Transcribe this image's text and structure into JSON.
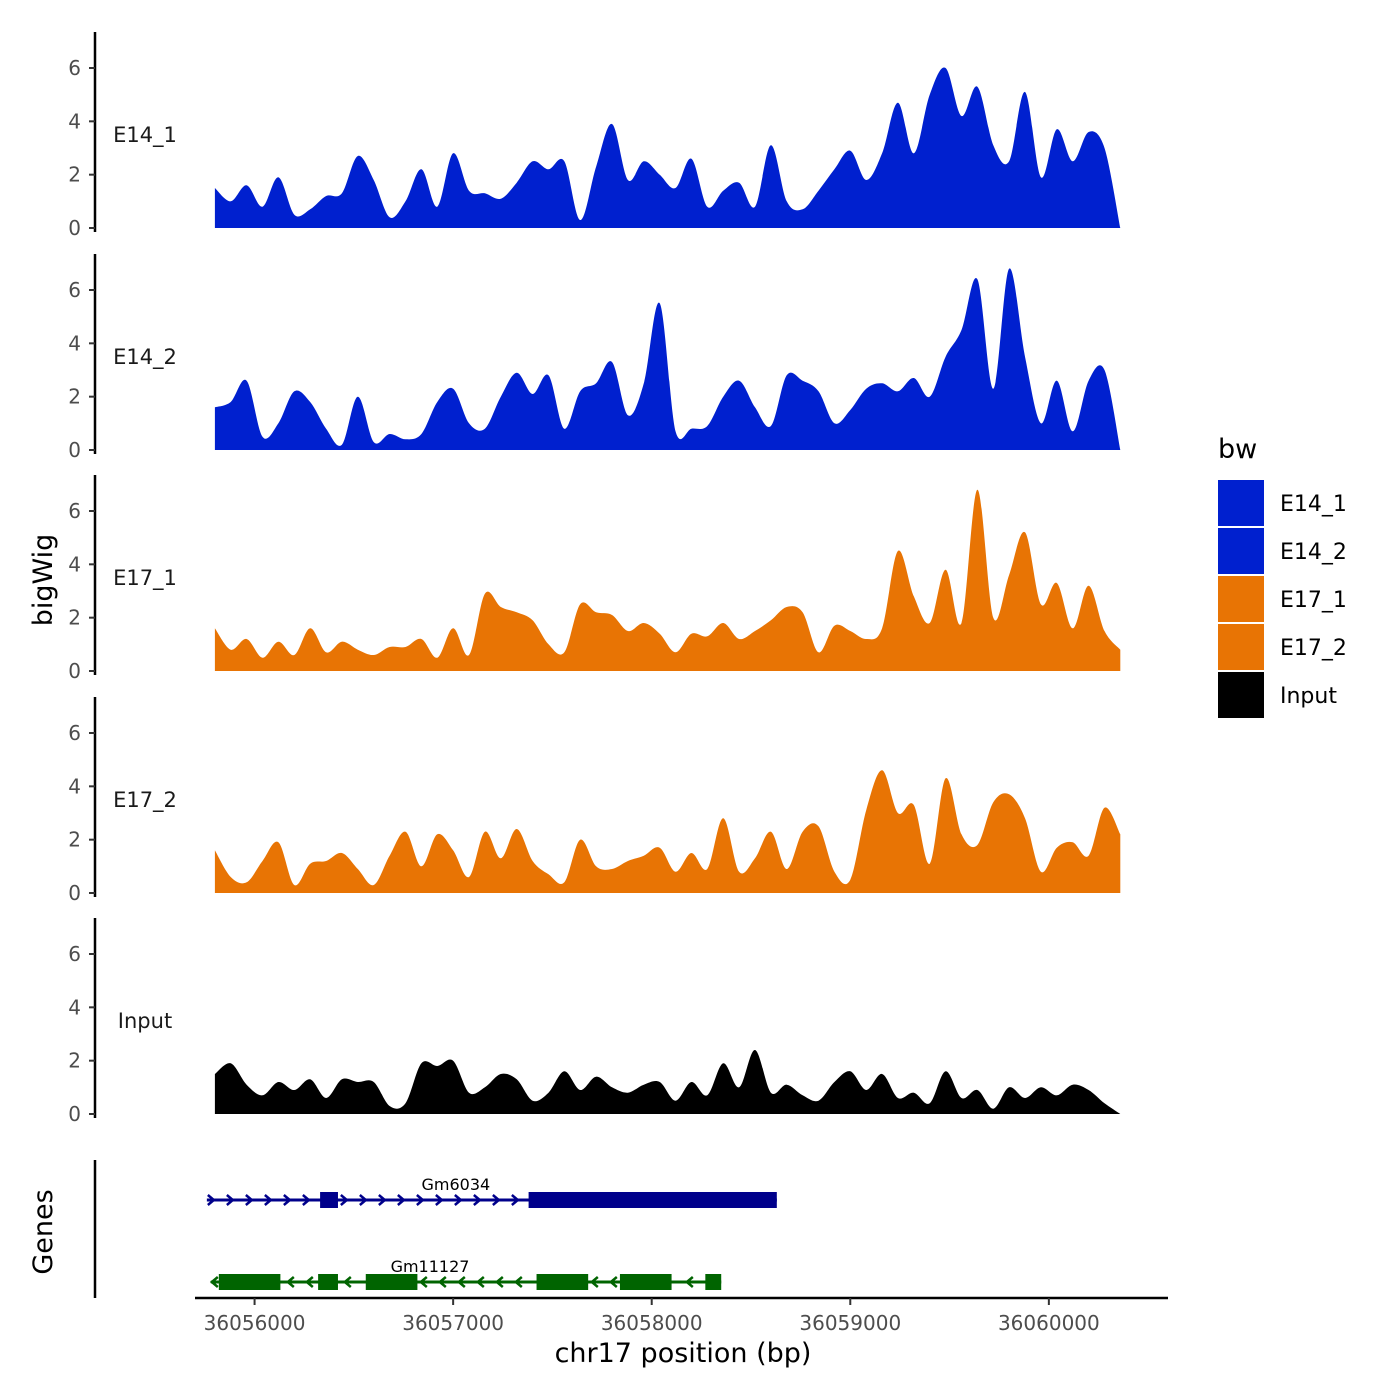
{
  "chart_data": {
    "type": "area",
    "ylabel": "bigWig",
    "xlabel": "chr17 position (bp)",
    "ylim": [
      0,
      7.2
    ],
    "y_ticks": [
      0,
      2,
      4,
      6
    ],
    "x_range": [
      36055700,
      36060600
    ],
    "x_ticks": [
      36056000,
      36057000,
      36058000,
      36059000,
      36060000
    ],
    "x_tick_labels": [
      "36056000",
      "36057000",
      "36058000",
      "36059000",
      "36060000"
    ],
    "gene_axis_label": "Genes",
    "legend": {
      "title": "bw",
      "entries": [
        {
          "label": "E14_1",
          "color": "#0020cf"
        },
        {
          "label": "E14_2",
          "color": "#0020cf"
        },
        {
          "label": "E17_1",
          "color": "#e87404"
        },
        {
          "label": "E17_2",
          "color": "#e87404"
        },
        {
          "label": "Input",
          "color": "#000000"
        }
      ]
    },
    "tracks": [
      {
        "name": "E14_1",
        "color": "#0020cf",
        "x": [
          36055800,
          36055880,
          36055960,
          36056040,
          36056120,
          36056200,
          36056280,
          36056360,
          36056440,
          36056520,
          36056600,
          36056680,
          36056760,
          36056840,
          36056920,
          36057000,
          36057080,
          36057160,
          36057240,
          36057320,
          36057400,
          36057480,
          36057560,
          36057640,
          36057720,
          36057800,
          36057880,
          36057960,
          36058040,
          36058120,
          36058200,
          36058280,
          36058360,
          36058440,
          36058520,
          36058600,
          36058680,
          36058760,
          36058840,
          36058920,
          36059000,
          36059080,
          36059160,
          36059240,
          36059320,
          36059400,
          36059480,
          36059560,
          36059640,
          36059720,
          36059800,
          36059880,
          36059960,
          36060040,
          36060120,
          36060200,
          36060280,
          36060360
        ],
        "values": [
          1.5,
          1.0,
          1.6,
          0.8,
          1.9,
          0.5,
          0.7,
          1.2,
          1.3,
          2.7,
          1.8,
          0.4,
          1.0,
          2.2,
          0.8,
          2.8,
          1.4,
          1.3,
          1.1,
          1.7,
          2.5,
          2.2,
          2.5,
          0.3,
          2.3,
          3.9,
          1.8,
          2.5,
          2.0,
          1.5,
          2.6,
          0.8,
          1.4,
          1.7,
          0.8,
          3.1,
          1.0,
          0.7,
          1.4,
          2.2,
          2.9,
          1.8,
          2.8,
          4.7,
          2.8,
          5.0,
          6.0,
          4.2,
          5.3,
          3.1,
          2.5,
          5.1,
          1.9,
          3.7,
          2.5,
          3.6,
          3.0,
          0.0
        ]
      },
      {
        "name": "E14_2",
        "color": "#0020cf",
        "x": [
          36055800,
          36055880,
          36055960,
          36056040,
          36056120,
          36056200,
          36056280,
          36056360,
          36056440,
          36056520,
          36056600,
          36056680,
          36056760,
          36056840,
          36056920,
          36057000,
          36057080,
          36057160,
          36057240,
          36057320,
          36057400,
          36057480,
          36057560,
          36057640,
          36057720,
          36057800,
          36057880,
          36057960,
          36058040,
          36058120,
          36058200,
          36058280,
          36058360,
          36058440,
          36058520,
          36058600,
          36058680,
          36058760,
          36058840,
          36058920,
          36059000,
          36059080,
          36059160,
          36059240,
          36059320,
          36059400,
          36059480,
          36059560,
          36059640,
          36059720,
          36059800,
          36059880,
          36059960,
          36060040,
          36060120,
          36060200,
          36060280,
          36060360
        ],
        "values": [
          1.6,
          1.8,
          2.6,
          0.5,
          1.0,
          2.2,
          1.8,
          0.8,
          0.2,
          2.0,
          0.3,
          0.6,
          0.4,
          0.6,
          1.8,
          2.3,
          1.0,
          0.8,
          2.0,
          2.9,
          2.1,
          2.8,
          0.8,
          2.2,
          2.5,
          3.3,
          1.3,
          2.5,
          5.5,
          0.7,
          0.8,
          0.9,
          2.0,
          2.6,
          1.6,
          0.9,
          2.8,
          2.6,
          2.2,
          1.0,
          1.5,
          2.3,
          2.5,
          2.2,
          2.7,
          2.0,
          3.5,
          4.5,
          6.4,
          2.3,
          6.8,
          3.5,
          1.0,
          2.6,
          0.7,
          2.6,
          3.0,
          0.0
        ]
      },
      {
        "name": "E17_1",
        "color": "#e87404",
        "x": [
          36055800,
          36055880,
          36055960,
          36056040,
          36056120,
          36056200,
          36056280,
          36056360,
          36056440,
          36056520,
          36056600,
          36056680,
          36056760,
          36056840,
          36056920,
          36057000,
          36057080,
          36057160,
          36057240,
          36057320,
          36057400,
          36057480,
          36057560,
          36057640,
          36057720,
          36057800,
          36057880,
          36057960,
          36058040,
          36058120,
          36058200,
          36058280,
          36058360,
          36058440,
          36058520,
          36058600,
          36058680,
          36058760,
          36058840,
          36058920,
          36059000,
          36059080,
          36059160,
          36059240,
          36059320,
          36059400,
          36059480,
          36059560,
          36059640,
          36059720,
          36059800,
          36059880,
          36059960,
          36060040,
          36060120,
          36060200,
          36060280,
          36060360
        ],
        "values": [
          1.6,
          0.8,
          1.2,
          0.5,
          1.1,
          0.6,
          1.6,
          0.7,
          1.1,
          0.8,
          0.6,
          0.9,
          0.9,
          1.2,
          0.5,
          1.6,
          0.6,
          2.9,
          2.4,
          2.2,
          1.9,
          1.0,
          0.7,
          2.5,
          2.2,
          2.1,
          1.5,
          1.8,
          1.4,
          0.7,
          1.4,
          1.3,
          1.8,
          1.2,
          1.5,
          1.9,
          2.4,
          2.2,
          0.7,
          1.7,
          1.5,
          1.2,
          1.6,
          4.5,
          2.8,
          1.8,
          3.8,
          1.8,
          6.8,
          2.0,
          3.6,
          5.2,
          2.5,
          3.3,
          1.6,
          3.2,
          1.5,
          0.8
        ]
      },
      {
        "name": "E17_2",
        "color": "#e87404",
        "x": [
          36055800,
          36055880,
          36055960,
          36056040,
          36056120,
          36056200,
          36056280,
          36056360,
          36056440,
          36056520,
          36056600,
          36056680,
          36056760,
          36056840,
          36056920,
          36057000,
          36057080,
          36057160,
          36057240,
          36057320,
          36057400,
          36057480,
          36057560,
          36057640,
          36057720,
          36057800,
          36057880,
          36057960,
          36058040,
          36058120,
          36058200,
          36058280,
          36058360,
          36058440,
          36058520,
          36058600,
          36058680,
          36058760,
          36058840,
          36058920,
          36059000,
          36059080,
          36059160,
          36059240,
          36059320,
          36059400,
          36059480,
          36059560,
          36059640,
          36059720,
          36059800,
          36059880,
          36059960,
          36060040,
          36060120,
          36060200,
          36060280,
          36060360
        ],
        "values": [
          1.6,
          0.6,
          0.4,
          1.2,
          1.9,
          0.3,
          1.1,
          1.2,
          1.5,
          0.9,
          0.3,
          1.4,
          2.3,
          1.0,
          2.2,
          1.6,
          0.6,
          2.3,
          1.3,
          2.4,
          1.2,
          0.7,
          0.4,
          2.0,
          1.0,
          0.9,
          1.2,
          1.4,
          1.7,
          0.8,
          1.5,
          0.9,
          2.8,
          0.8,
          1.3,
          2.3,
          0.9,
          2.3,
          2.5,
          0.8,
          0.5,
          3.1,
          4.6,
          3.0,
          3.3,
          1.1,
          4.3,
          2.2,
          1.8,
          3.4,
          3.7,
          2.8,
          0.8,
          1.7,
          1.9,
          1.4,
          3.2,
          2.2
        ]
      },
      {
        "name": "Input",
        "color": "#000000",
        "x": [
          36055800,
          36055880,
          36055960,
          36056040,
          36056120,
          36056200,
          36056280,
          36056360,
          36056440,
          36056520,
          36056600,
          36056680,
          36056760,
          36056840,
          36056920,
          36057000,
          36057080,
          36057160,
          36057240,
          36057320,
          36057400,
          36057480,
          36057560,
          36057640,
          36057720,
          36057800,
          36057880,
          36057960,
          36058040,
          36058120,
          36058200,
          36058280,
          36058360,
          36058440,
          36058520,
          36058600,
          36058680,
          36058760,
          36058840,
          36058920,
          36059000,
          36059080,
          36059160,
          36059240,
          36059320,
          36059400,
          36059480,
          36059560,
          36059640,
          36059720,
          36059800,
          36059880,
          36059960,
          36060040,
          36060120,
          36060200,
          36060280,
          36060360
        ],
        "values": [
          1.5,
          1.9,
          1.1,
          0.7,
          1.2,
          0.9,
          1.3,
          0.6,
          1.3,
          1.2,
          1.2,
          0.3,
          0.4,
          1.9,
          1.8,
          2.0,
          0.8,
          1.0,
          1.5,
          1.3,
          0.5,
          0.8,
          1.6,
          0.9,
          1.4,
          1.0,
          0.8,
          1.1,
          1.2,
          0.5,
          1.2,
          0.7,
          1.9,
          1.0,
          2.4,
          0.8,
          1.1,
          0.7,
          0.5,
          1.2,
          1.6,
          0.9,
          1.5,
          0.6,
          0.8,
          0.4,
          1.6,
          0.6,
          0.9,
          0.2,
          1.0,
          0.6,
          1.0,
          0.7,
          1.1,
          0.9,
          0.4,
          0.0
        ]
      }
    ],
    "genes": [
      {
        "name": "Gm6034",
        "strand": "+",
        "color": "#00008b",
        "start": 36055800,
        "end": 36058630,
        "exons": [
          [
            36056330,
            36056420
          ],
          [
            36057380,
            36058630
          ]
        ]
      },
      {
        "name": "Gm11127",
        "strand": "-",
        "color": "#006400",
        "start": 36055820,
        "end": 36058350,
        "exons": [
          [
            36055820,
            36056130
          ],
          [
            36056320,
            36056420
          ],
          [
            36056560,
            36056820
          ],
          [
            36057420,
            36057680
          ],
          [
            36057840,
            36058100
          ],
          [
            36058270,
            36058350
          ]
        ]
      }
    ]
  }
}
